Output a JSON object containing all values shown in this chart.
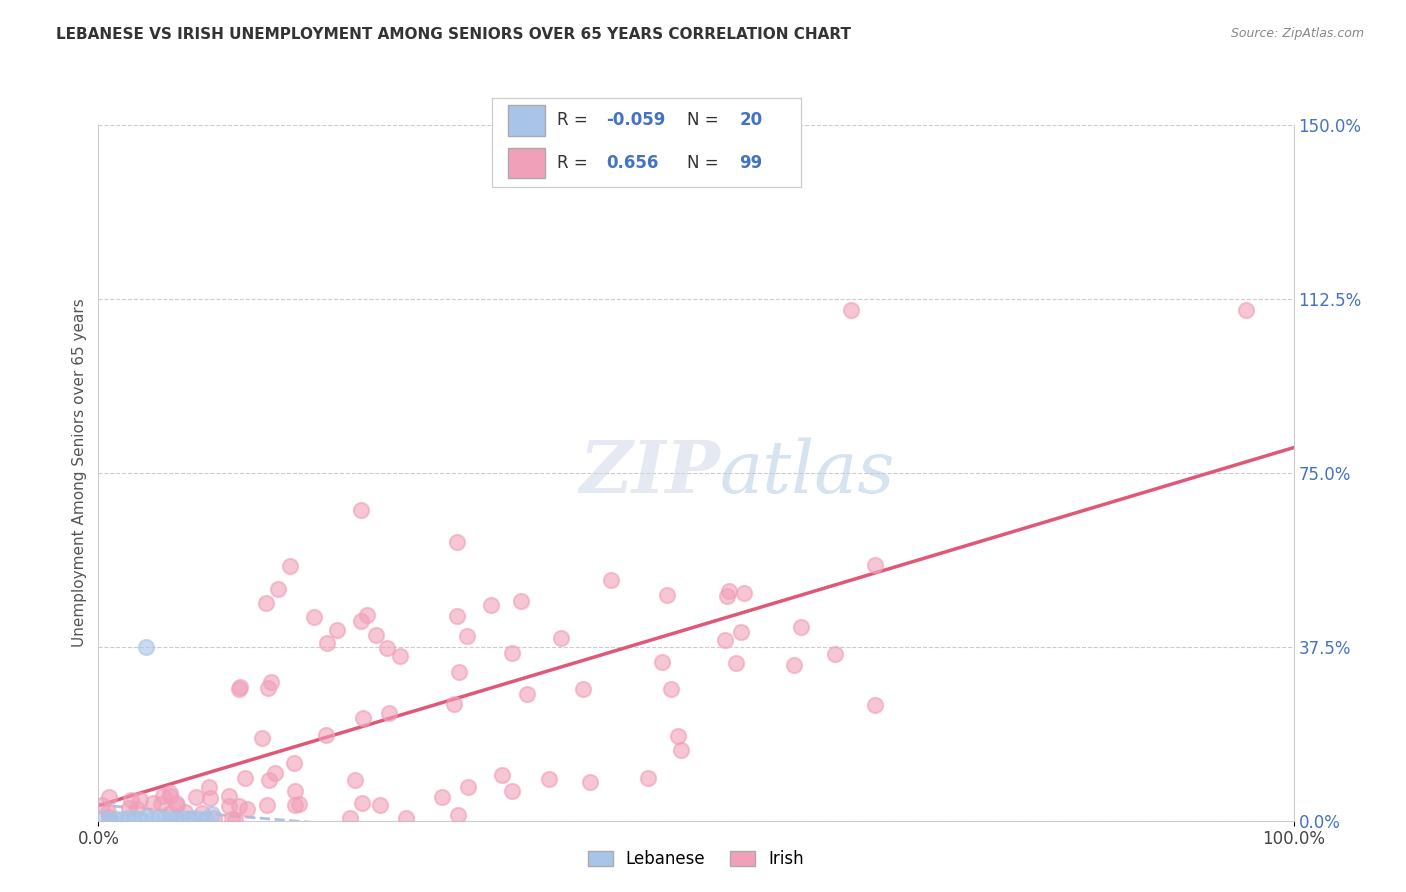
{
  "title": "LEBANESE VS IRISH UNEMPLOYMENT AMONG SENIORS OVER 65 YEARS CORRELATION CHART",
  "source": "Source: ZipAtlas.com",
  "ylabel": "Unemployment Among Seniors over 65 years",
  "lebanese_color": "#a8c4e8",
  "irish_color": "#f0a0b8",
  "irish_line_color": "#e05878",
  "lebanese_line_color": "#a8c4e8",
  "R_lebanese": -0.059,
  "N_lebanese": 20,
  "R_irish": 0.656,
  "N_irish": 99,
  "background_color": "#ffffff",
  "grid_color": "#cccccc",
  "xlim": [
    0.0,
    1.0
  ],
  "ylim": [
    0.0,
    1.5
  ],
  "right_yticks": [
    0.0,
    0.375,
    0.75,
    1.125,
    1.5
  ],
  "right_yticklabels": [
    "0.0%",
    "37.5%",
    "75.0%",
    "112.5%",
    "150.0%"
  ],
  "xticks": [
    0.0,
    1.0
  ],
  "xticklabels": [
    "0.0%",
    "100.0%"
  ]
}
